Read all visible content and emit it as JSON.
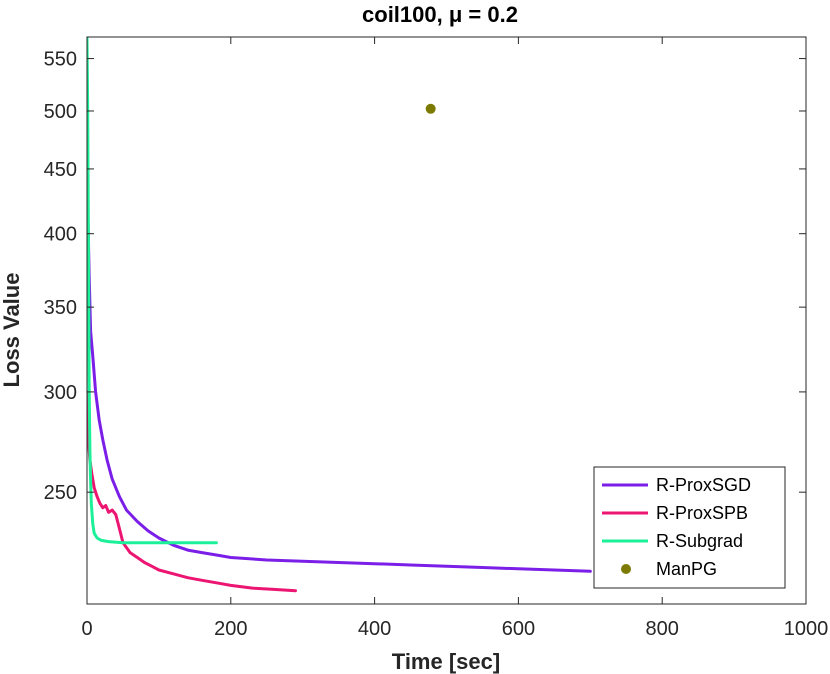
{
  "chart_data": {
    "type": "line",
    "title": "coil100, μ = 0.2",
    "xlabel": "Time [sec]",
    "ylabel": "Loss Value",
    "xlim": [
      0,
      1000
    ],
    "ylim": [
      204,
      572
    ],
    "yscale": "log",
    "xticks": [
      0,
      200,
      400,
      600,
      800,
      1000
    ],
    "xtick_labels": [
      "0",
      "200",
      "400",
      "600",
      "800",
      "1000"
    ],
    "yticks": [
      250,
      300,
      350,
      400,
      450,
      500,
      550
    ],
    "ytick_labels": [
      "250",
      "300",
      "350",
      "400",
      "450",
      "500",
      "550"
    ],
    "grid": false,
    "legend_position": "bottom-right",
    "series": [
      {
        "name": "R-ProxSGD",
        "color": "#7b1fe8",
        "marker": "line",
        "x": [
          1,
          3,
          5,
          8,
          12,
          17,
          22,
          28,
          35,
          45,
          55,
          70,
          85,
          100,
          120,
          140,
          160,
          180,
          200,
          250,
          300,
          350,
          400,
          450,
          500,
          550,
          600,
          650,
          700
        ],
        "y": [
          420,
          370,
          335,
          320,
          300,
          285,
          275,
          265,
          256,
          248,
          242,
          237,
          233,
          230,
          227,
          225,
          224,
          223,
          222,
          221,
          220.5,
          220,
          219.5,
          219,
          218.5,
          218,
          217.5,
          217,
          216.5
        ]
      },
      {
        "name": "R-ProxSPB",
        "color": "#ec1572",
        "marker": "line",
        "x": [
          0,
          2,
          4,
          7,
          10,
          14,
          18,
          22,
          26,
          30,
          35,
          40,
          45,
          50,
          60,
          70,
          80,
          90,
          100,
          120,
          140,
          160,
          180,
          200,
          230,
          260,
          290
        ],
        "y": [
          300,
          275,
          265,
          258,
          252,
          248,
          245,
          243,
          244,
          241,
          242,
          240,
          234,
          228,
          224,
          222,
          220,
          218.5,
          217,
          215.5,
          214,
          213,
          212,
          211,
          210,
          209.5,
          209
        ]
      },
      {
        "name": "R-Subgrad",
        "color": "#1cf099",
        "marker": "line",
        "x": [
          0,
          1,
          2,
          3,
          4,
          5,
          6,
          8,
          10,
          14,
          20,
          30,
          50,
          80,
          110,
          140,
          160,
          180
        ],
        "y": [
          572,
          500,
          400,
          300,
          270,
          255,
          245,
          236,
          232,
          230,
          229,
          228.5,
          228,
          228,
          228,
          228,
          228,
          228
        ]
      },
      {
        "name": "ManPG",
        "color": "#7c7a00",
        "marker": "dot",
        "x": [
          478
        ],
        "y": [
          502
        ]
      }
    ]
  }
}
